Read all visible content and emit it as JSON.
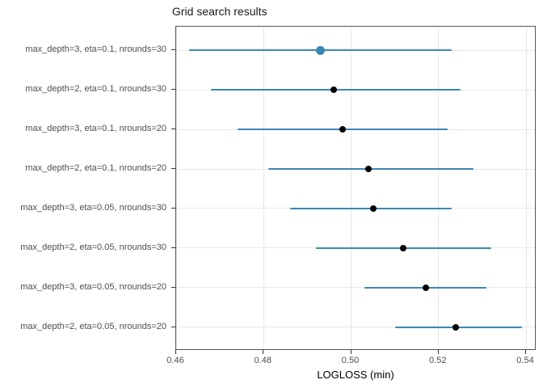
{
  "chart_data": {
    "type": "scatter",
    "title": "Grid search results",
    "xlabel": "LOGLOSS (min)",
    "ylabel": "",
    "xlim": [
      0.46,
      0.54
    ],
    "xticks": [
      0.46,
      0.48,
      0.5,
      0.52,
      0.54
    ],
    "xtick_labels": [
      "0.46",
      "0.48",
      "0.50",
      "0.52",
      "0.54"
    ],
    "grid": "major-only",
    "legend": "none",
    "orientation": "horizontal-dotplot-with-intervals",
    "rows": [
      {
        "label": "max_depth=3, eta=0.1, nrounds=30",
        "value": 0.493,
        "lower": 0.463,
        "upper": 0.523,
        "best": true
      },
      {
        "label": "max_depth=2, eta=0.1, nrounds=30",
        "value": 0.496,
        "lower": 0.468,
        "upper": 0.525,
        "best": false
      },
      {
        "label": "max_depth=3, eta=0.1, nrounds=20",
        "value": 0.498,
        "lower": 0.474,
        "upper": 0.522,
        "best": false
      },
      {
        "label": "max_depth=2, eta=0.1, nrounds=20",
        "value": 0.504,
        "lower": 0.481,
        "upper": 0.528,
        "best": false
      },
      {
        "label": "max_depth=3, eta=0.05, nrounds=30",
        "value": 0.505,
        "lower": 0.486,
        "upper": 0.523,
        "best": false
      },
      {
        "label": "max_depth=2, eta=0.05, nrounds=30",
        "value": 0.512,
        "lower": 0.492,
        "upper": 0.532,
        "best": false
      },
      {
        "label": "max_depth=3, eta=0.05, nrounds=20",
        "value": 0.517,
        "lower": 0.503,
        "upper": 0.531,
        "best": false
      },
      {
        "label": "max_depth=2, eta=0.05, nrounds=20",
        "value": 0.524,
        "lower": 0.51,
        "upper": 0.539,
        "best": false
      }
    ],
    "colors": {
      "interval": "#3a87b5",
      "point": "#000000",
      "best_point": "#3a87b5",
      "grid": "#e8e8e8",
      "panel_border": "#555555",
      "tick": "#333333",
      "tick_label": "#4d4d4d",
      "title": "#1a1a1a"
    }
  }
}
